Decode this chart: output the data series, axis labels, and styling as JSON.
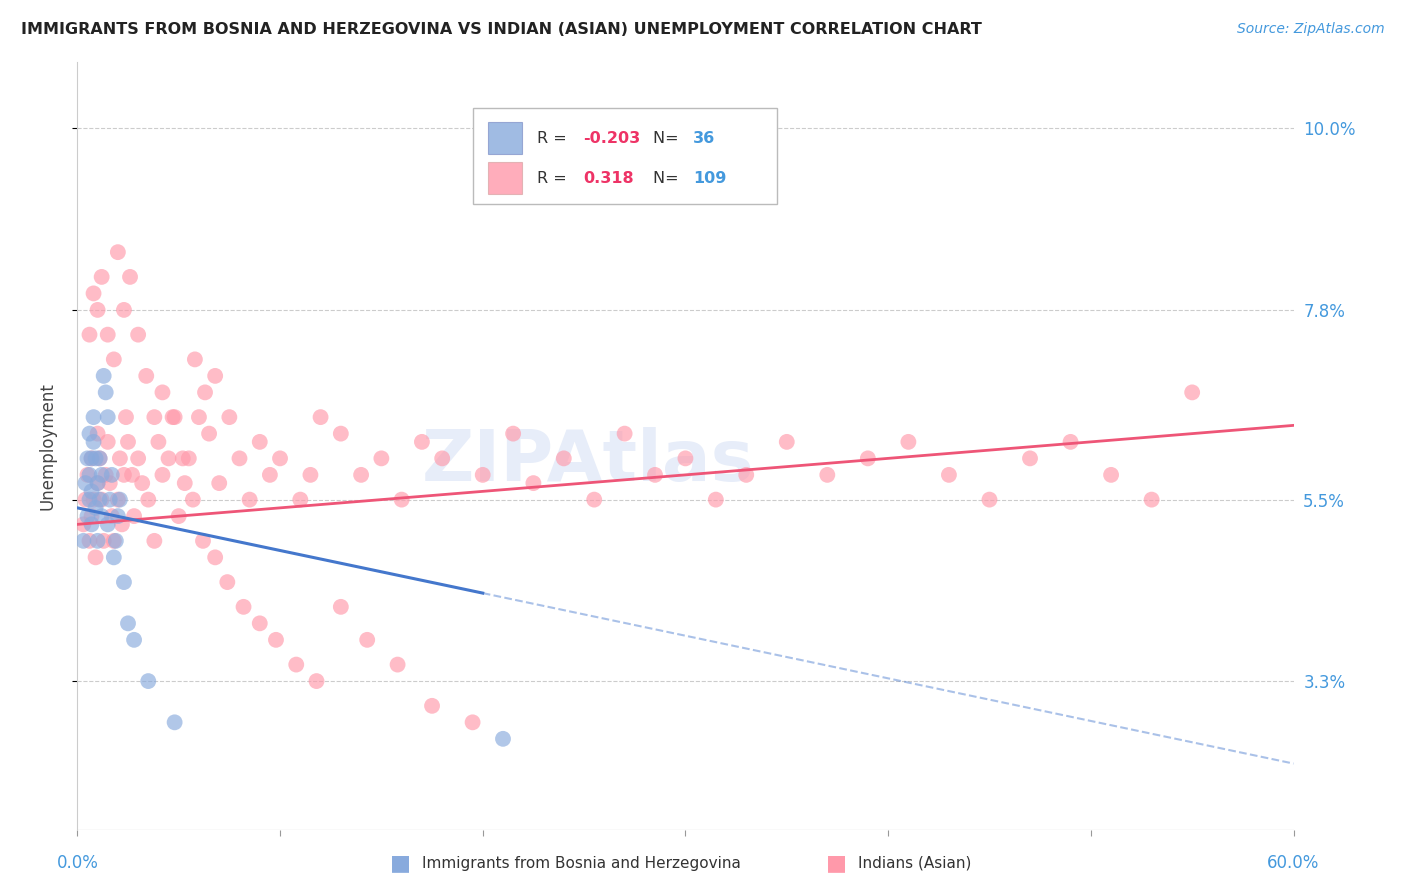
{
  "title": "IMMIGRANTS FROM BOSNIA AND HERZEGOVINA VS INDIAN (ASIAN) UNEMPLOYMENT CORRELATION CHART",
  "source": "Source: ZipAtlas.com",
  "ylabel": "Unemployment",
  "ytick_labels": [
    "10.0%",
    "7.8%",
    "5.5%",
    "3.3%"
  ],
  "ytick_values": [
    0.1,
    0.078,
    0.055,
    0.033
  ],
  "legend_blue_R": "-0.203",
  "legend_blue_N": "36",
  "legend_pink_R": "0.318",
  "legend_pink_N": "109",
  "legend_label_blue": "Immigrants from Bosnia and Herzegovina",
  "legend_label_pink": "Indians (Asian)",
  "xlim": [
    0.0,
    0.6
  ],
  "ylim": [
    0.015,
    0.108
  ],
  "blue_color": "#88AADD",
  "pink_color": "#FF99AA",
  "blue_line_color": "#4477CC",
  "pink_line_color": "#EE5577",
  "watermark_color": "#BBCCEE",
  "blue_line_x0": 0.0,
  "blue_line_y0": 0.054,
  "blue_line_x1": 0.6,
  "blue_line_y1": 0.023,
  "blue_line_solid_end": 0.2,
  "pink_line_x0": 0.0,
  "pink_line_y0": 0.052,
  "pink_line_x1": 0.6,
  "pink_line_y1": 0.064,
  "blue_scatter_x": [
    0.003,
    0.004,
    0.005,
    0.005,
    0.006,
    0.006,
    0.006,
    0.007,
    0.007,
    0.007,
    0.008,
    0.008,
    0.009,
    0.009,
    0.01,
    0.01,
    0.011,
    0.011,
    0.012,
    0.012,
    0.013,
    0.014,
    0.015,
    0.015,
    0.016,
    0.017,
    0.018,
    0.019,
    0.02,
    0.021,
    0.023,
    0.025,
    0.028,
    0.035,
    0.048,
    0.21
  ],
  "blue_scatter_y": [
    0.05,
    0.057,
    0.06,
    0.053,
    0.058,
    0.055,
    0.063,
    0.052,
    0.056,
    0.06,
    0.062,
    0.065,
    0.054,
    0.06,
    0.057,
    0.05,
    0.055,
    0.06,
    0.053,
    0.058,
    0.07,
    0.068,
    0.065,
    0.052,
    0.055,
    0.058,
    0.048,
    0.05,
    0.053,
    0.055,
    0.045,
    0.04,
    0.038,
    0.033,
    0.028,
    0.026
  ],
  "pink_scatter_x": [
    0.003,
    0.004,
    0.005,
    0.006,
    0.007,
    0.007,
    0.008,
    0.009,
    0.01,
    0.01,
    0.011,
    0.012,
    0.013,
    0.014,
    0.015,
    0.016,
    0.017,
    0.018,
    0.02,
    0.021,
    0.022,
    0.023,
    0.024,
    0.025,
    0.027,
    0.028,
    0.03,
    0.032,
    0.035,
    0.038,
    0.04,
    0.042,
    0.045,
    0.048,
    0.05,
    0.053,
    0.055,
    0.058,
    0.06,
    0.063,
    0.065,
    0.068,
    0.07,
    0.075,
    0.08,
    0.085,
    0.09,
    0.095,
    0.1,
    0.11,
    0.115,
    0.12,
    0.13,
    0.14,
    0.15,
    0.16,
    0.17,
    0.18,
    0.2,
    0.215,
    0.225,
    0.24,
    0.255,
    0.27,
    0.285,
    0.3,
    0.315,
    0.33,
    0.35,
    0.37,
    0.39,
    0.41,
    0.43,
    0.45,
    0.47,
    0.49,
    0.51,
    0.53,
    0.55,
    0.006,
    0.008,
    0.01,
    0.012,
    0.015,
    0.018,
    0.02,
    0.023,
    0.026,
    0.03,
    0.034,
    0.038,
    0.042,
    0.047,
    0.052,
    0.057,
    0.062,
    0.068,
    0.074,
    0.082,
    0.09,
    0.098,
    0.108,
    0.118,
    0.13,
    0.143,
    0.158,
    0.175,
    0.195
  ],
  "pink_scatter_y": [
    0.052,
    0.055,
    0.058,
    0.05,
    0.06,
    0.053,
    0.055,
    0.048,
    0.057,
    0.063,
    0.06,
    0.055,
    0.05,
    0.058,
    0.062,
    0.057,
    0.053,
    0.05,
    0.055,
    0.06,
    0.052,
    0.058,
    0.065,
    0.062,
    0.058,
    0.053,
    0.06,
    0.057,
    0.055,
    0.05,
    0.062,
    0.058,
    0.06,
    0.065,
    0.053,
    0.057,
    0.06,
    0.072,
    0.065,
    0.068,
    0.063,
    0.07,
    0.057,
    0.065,
    0.06,
    0.055,
    0.062,
    0.058,
    0.06,
    0.055,
    0.058,
    0.065,
    0.063,
    0.058,
    0.06,
    0.055,
    0.062,
    0.06,
    0.058,
    0.063,
    0.057,
    0.06,
    0.055,
    0.063,
    0.058,
    0.06,
    0.055,
    0.058,
    0.062,
    0.058,
    0.06,
    0.062,
    0.058,
    0.055,
    0.06,
    0.062,
    0.058,
    0.055,
    0.068,
    0.075,
    0.08,
    0.078,
    0.082,
    0.075,
    0.072,
    0.085,
    0.078,
    0.082,
    0.075,
    0.07,
    0.065,
    0.068,
    0.065,
    0.06,
    0.055,
    0.05,
    0.048,
    0.045,
    0.042,
    0.04,
    0.038,
    0.035,
    0.033,
    0.042,
    0.038,
    0.035,
    0.03,
    0.028
  ]
}
